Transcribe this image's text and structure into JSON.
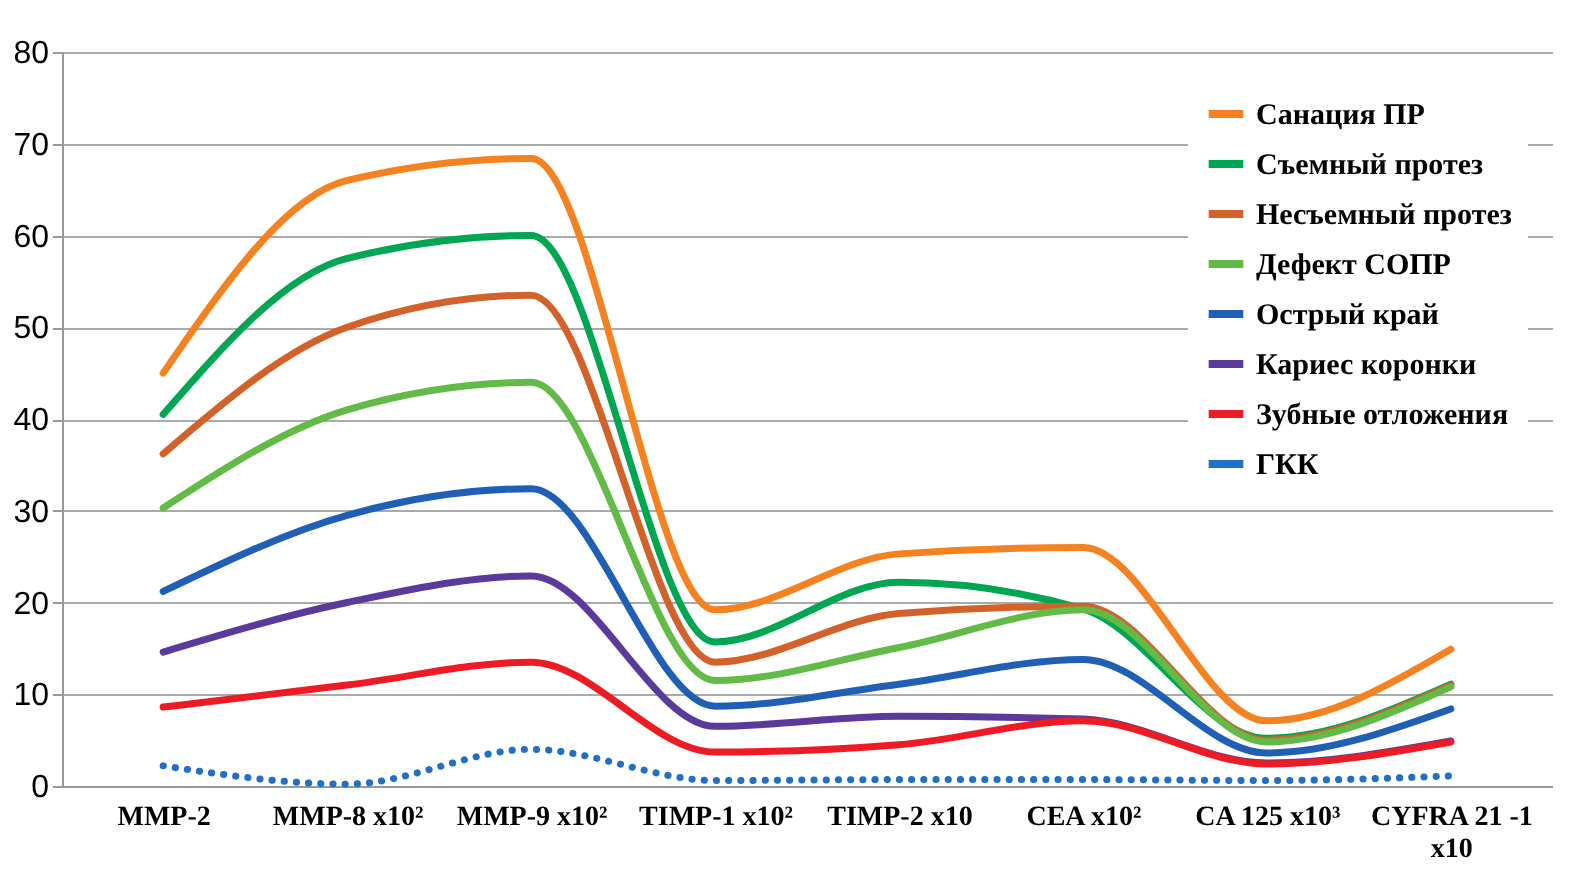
{
  "chart_data": {
    "type": "line",
    "categories": [
      "MMP-2",
      "MMP-8 x10²",
      "MMP-9 x10²",
      "TIMP-1 x10²",
      "TIMP-2 x10",
      "CEA x10²",
      "CA 125 x10³",
      "CYFRA 21 -1 x10"
    ],
    "ylim": [
      0,
      80
    ],
    "yticks": [
      0,
      10,
      20,
      30,
      40,
      50,
      60,
      70,
      80
    ],
    "grid": "y",
    "legend": "top right",
    "marker": "none",
    "line_style": "solid",
    "series": [
      {
        "name": "Санация ПР",
        "color": "#f58220",
        "values": [
          45,
          66,
          68.4,
          19.2,
          25.3,
          26,
          7.1,
          14.9
        ]
      },
      {
        "name": "Съемный протез",
        "color": "#00a651",
        "values": [
          40.5,
          57.5,
          60,
          15.7,
          22.2,
          19.3,
          5.2,
          11.1
        ]
      },
      {
        "name": "Несъемный протез",
        "color": "#d2622a",
        "values": [
          36.2,
          50,
          53.5,
          13.5,
          18.8,
          19.6,
          5,
          11
        ]
      },
      {
        "name": "Дефект СОПР",
        "color": "#62bb46",
        "values": [
          30.3,
          41,
          44,
          11.5,
          15.1,
          19.2,
          4.8,
          10.8
        ]
      },
      {
        "name": "Острый край",
        "color": "#1f5fb5",
        "values": [
          21.2,
          29.5,
          32.4,
          8.7,
          11.1,
          13.8,
          3.6,
          8.4
        ]
      },
      {
        "name": "Кариес коронки",
        "color": "#5b3a9b",
        "values": [
          14.6,
          20,
          22.9,
          6.5,
          7.6,
          7.3,
          2.5,
          4.9
        ]
      },
      {
        "name": "Зубные отложения",
        "color": "#ed1c24",
        "values": [
          8.6,
          11,
          13.5,
          3.7,
          4.5,
          7.1,
          2.4,
          4.8
        ]
      },
      {
        "name": "ГКК",
        "color": "#2070c8",
        "line_style": "dotted",
        "values": [
          2.2,
          0.2,
          4,
          0.6,
          0.7,
          0.7,
          0.6,
          1.1
        ]
      }
    ]
  }
}
